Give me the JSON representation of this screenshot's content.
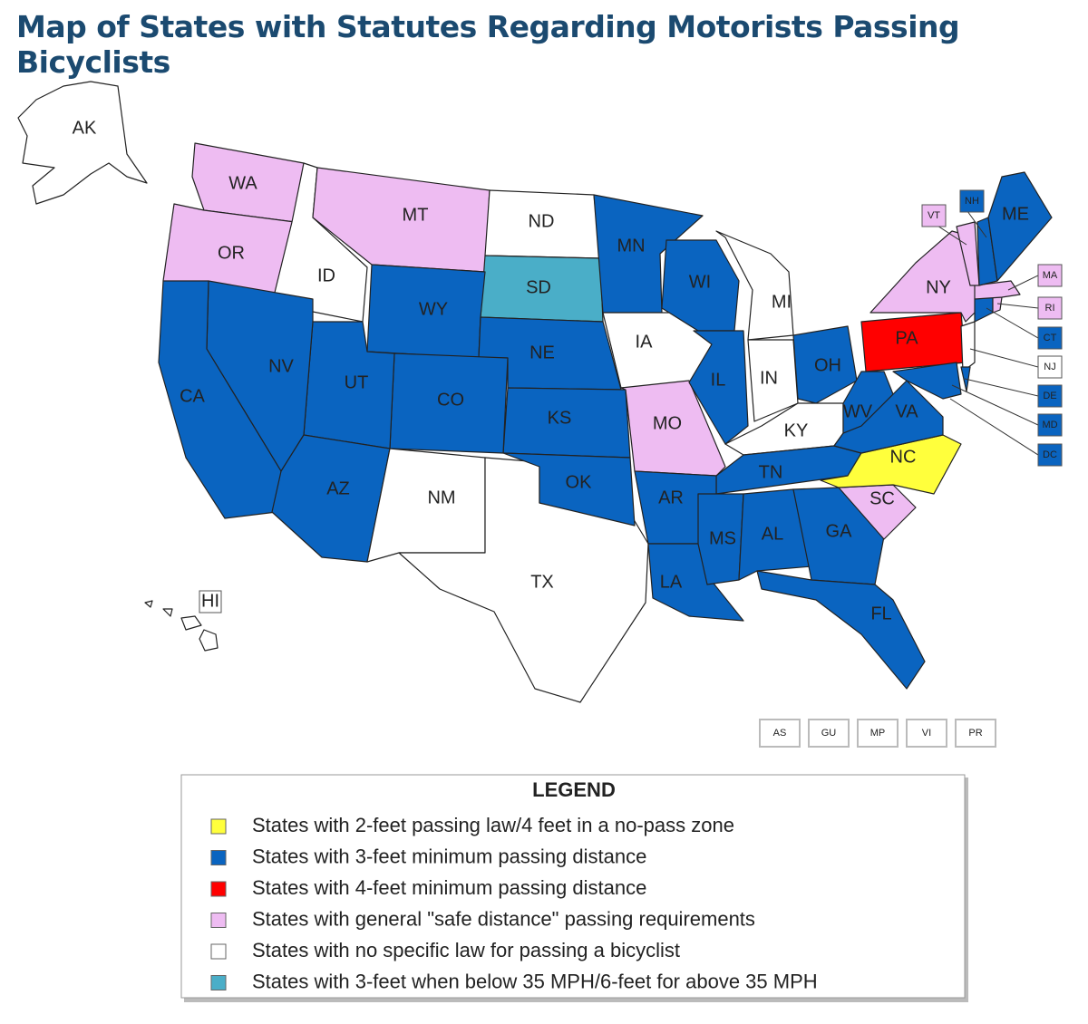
{
  "title": "Map of States with Statutes Regarding Motorists Passing Bicyclists",
  "legend": {
    "title": "LEGEND",
    "items": [
      {
        "label": "States with 2-feet passing law/4 feet in a no-pass zone",
        "color": "#ffff3c"
      },
      {
        "label": "States with 3-feet minimum passing distance",
        "color": "#0a64c0"
      },
      {
        "label": "States with 4-feet minimum passing distance",
        "color": "#ff0000"
      },
      {
        "label": "States with general \"safe distance\" passing requirements",
        "color": "#eebcf2"
      },
      {
        "label": "States with no specific law for passing a bicyclist",
        "color": "#ffffff"
      },
      {
        "label": "States with 3-feet when below 35 MPH/6-feet for above 35 MPH",
        "color": "#4aaec8"
      }
    ]
  },
  "states": [
    {
      "label": "WA",
      "legend": 3
    },
    {
      "label": "OR",
      "legend": 3
    },
    {
      "label": "ID",
      "legend": 4
    },
    {
      "label": "MT",
      "legend": 3
    },
    {
      "label": "ND",
      "legend": 4
    },
    {
      "label": "SD",
      "legend": 5
    },
    {
      "label": "WY",
      "legend": 1
    },
    {
      "label": "NE",
      "legend": 1
    },
    {
      "label": "KS",
      "legend": 1
    },
    {
      "label": "CO",
      "legend": 1
    },
    {
      "label": "UT",
      "legend": 1
    },
    {
      "label": "NV",
      "legend": 1
    },
    {
      "label": "CA",
      "legend": 1
    },
    {
      "label": "AZ",
      "legend": 1
    },
    {
      "label": "NM",
      "legend": 4
    },
    {
      "label": "TX",
      "legend": 4
    },
    {
      "label": "OK",
      "legend": 1
    },
    {
      "label": "MN",
      "legend": 1
    },
    {
      "label": "IA",
      "legend": 4
    },
    {
      "label": "MO",
      "legend": 3
    },
    {
      "label": "WI",
      "legend": 1
    },
    {
      "label": "IL",
      "legend": 1
    },
    {
      "label": "MI",
      "legend": 4
    },
    {
      "label": "IN",
      "legend": 4
    },
    {
      "label": "OH",
      "legend": 1
    },
    {
      "label": "KY",
      "legend": 4
    },
    {
      "label": "TN",
      "legend": 1
    },
    {
      "label": "AR",
      "legend": 1
    },
    {
      "label": "LA",
      "legend": 1
    },
    {
      "label": "MS",
      "legend": 1
    },
    {
      "label": "AL",
      "legend": 1
    },
    {
      "label": "GA",
      "legend": 1
    },
    {
      "label": "FL",
      "legend": 1
    },
    {
      "label": "SC",
      "legend": 3
    },
    {
      "label": "NC",
      "legend": 0
    },
    {
      "label": "VA",
      "legend": 1
    },
    {
      "label": "WV",
      "legend": 1
    },
    {
      "label": "PA",
      "legend": 2
    },
    {
      "label": "NY",
      "legend": 3
    },
    {
      "label": "NJ",
      "legend": 4
    },
    {
      "label": "DE",
      "legend": 1
    },
    {
      "label": "MD",
      "legend": 1
    },
    {
      "label": "CT",
      "legend": 1
    },
    {
      "label": "RI",
      "legend": 3
    },
    {
      "label": "MA",
      "legend": 3
    },
    {
      "label": "VT",
      "legend": 3
    },
    {
      "label": "NH",
      "legend": 1
    },
    {
      "label": "ME",
      "legend": 1
    },
    {
      "label": "DC",
      "legend": 1
    },
    {
      "label": "AK",
      "legend": 4
    },
    {
      "label": "HI",
      "legend": 4
    }
  ],
  "territories": [
    "AS",
    "GU",
    "MP",
    "VI",
    "PR"
  ]
}
